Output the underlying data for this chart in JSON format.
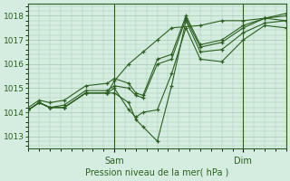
{
  "xlabel": "Pression niveau de la mer( hPa )",
  "bg_color": "#d4ede0",
  "grid_color": "#a8c8b4",
  "line_color": "#2d6020",
  "ylim": [
    1012.5,
    1018.5
  ],
  "yticks": [
    1013,
    1014,
    1015,
    1016,
    1017,
    1018
  ],
  "x_sam": 24,
  "x_dim": 60,
  "xlim": [
    0,
    72
  ],
  "series": [
    [
      0,
      1014.1,
      3,
      1014.4,
      6,
      1014.2,
      10,
      1014.2,
      16,
      1014.8,
      22,
      1014.8,
      24,
      1015.3,
      28,
      1016.0,
      32,
      1016.5,
      36,
      1017.0,
      40,
      1017.5,
      48,
      1017.6,
      54,
      1017.8,
      60,
      1017.8,
      66,
      1017.9,
      72,
      1017.8
    ],
    [
      0,
      1014.1,
      3,
      1014.4,
      6,
      1014.2,
      10,
      1014.2,
      16,
      1014.8,
      22,
      1014.8,
      24,
      1015.0,
      28,
      1014.1,
      30,
      1013.8,
      32,
      1014.0,
      36,
      1014.1,
      40,
      1015.6,
      44,
      1017.5,
      48,
      1016.2,
      54,
      1016.1,
      60,
      1017.0,
      66,
      1017.6,
      72,
      1017.5
    ],
    [
      0,
      1014.1,
      3,
      1014.4,
      6,
      1014.2,
      10,
      1014.2,
      16,
      1014.8,
      22,
      1014.8,
      24,
      1014.8,
      28,
      1014.4,
      30,
      1013.7,
      32,
      1013.4,
      36,
      1012.8,
      40,
      1015.1,
      44,
      1017.8,
      48,
      1016.5,
      54,
      1016.6,
      60,
      1017.3,
      66,
      1017.7,
      72,
      1017.8
    ],
    [
      0,
      1014.1,
      3,
      1014.4,
      6,
      1014.2,
      10,
      1014.3,
      16,
      1014.9,
      22,
      1014.9,
      24,
      1015.1,
      28,
      1015.0,
      30,
      1014.7,
      32,
      1014.6,
      36,
      1016.0,
      40,
      1016.2,
      44,
      1017.9,
      48,
      1016.7,
      54,
      1016.9,
      60,
      1017.5,
      66,
      1017.9,
      72,
      1018.0
    ],
    [
      0,
      1014.2,
      3,
      1014.5,
      6,
      1014.4,
      10,
      1014.5,
      16,
      1015.1,
      22,
      1015.2,
      24,
      1015.4,
      28,
      1015.2,
      30,
      1014.8,
      32,
      1014.7,
      36,
      1016.2,
      40,
      1016.4,
      44,
      1018.0,
      48,
      1016.8,
      54,
      1017.0,
      60,
      1017.6,
      66,
      1017.9,
      72,
      1018.1
    ]
  ]
}
